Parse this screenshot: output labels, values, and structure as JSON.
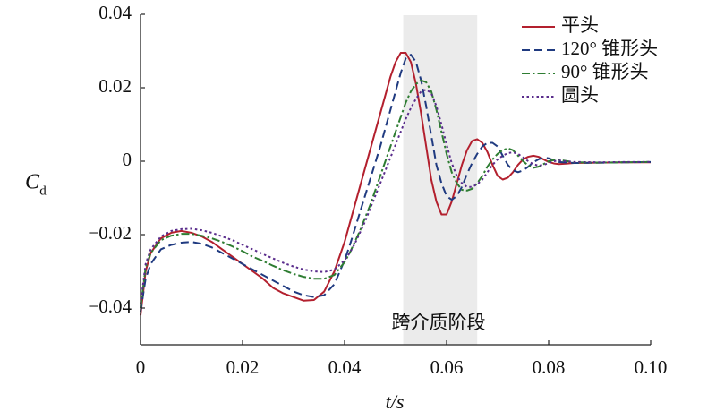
{
  "chart_data": {
    "type": "line",
    "ylabel": "C",
    "ylabel_subscript": "d",
    "xlabel": "t/s",
    "annotation": "跨介质阶段",
    "shaded_region": [
      0.0515,
      0.066
    ],
    "xlim": [
      0,
      0.1
    ],
    "ylim": [
      -0.05,
      0.04
    ],
    "xticks": [
      0,
      0.02,
      0.04,
      0.06,
      0.08,
      {
        "value": 0.1,
        "label": "0.10"
      }
    ],
    "yticks": [
      {
        "value": -0.04,
        "label": "−0.04"
      },
      {
        "value": -0.02,
        "label": "−0.02"
      },
      0,
      0.02,
      0.04
    ],
    "grid": false,
    "legend": "upper right",
    "x": [
      0,
      0.001,
      0.002,
      0.004,
      0.006,
      0.008,
      0.01,
      0.012,
      0.014,
      0.016,
      0.018,
      0.02,
      0.022,
      0.024,
      0.026,
      0.028,
      0.03,
      0.032,
      0.034,
      0.036,
      0.038,
      0.04,
      0.041,
      0.042,
      0.043,
      0.044,
      0.045,
      0.046,
      0.047,
      0.048,
      0.049,
      0.05,
      0.051,
      0.052,
      0.053,
      0.054,
      0.055,
      0.056,
      0.057,
      0.058,
      0.059,
      0.06,
      0.061,
      0.062,
      0.063,
      0.064,
      0.065,
      0.066,
      0.067,
      0.068,
      0.069,
      0.07,
      0.071,
      0.072,
      0.073,
      0.074,
      0.075,
      0.076,
      0.077,
      0.078,
      0.079,
      0.08,
      0.081,
      0.082,
      0.085,
      0.09,
      0.095,
      0.1
    ],
    "series": [
      {
        "name": "平头",
        "color": "#b3202e",
        "style": "solid",
        "values": [
          -0.042,
          -0.03,
          -0.025,
          -0.021,
          -0.0195,
          -0.019,
          -0.0195,
          -0.0205,
          -0.022,
          -0.024,
          -0.026,
          -0.028,
          -0.03,
          -0.032,
          -0.0345,
          -0.036,
          -0.037,
          -0.038,
          -0.0378,
          -0.0355,
          -0.03,
          -0.022,
          -0.017,
          -0.012,
          -0.007,
          -0.002,
          0.003,
          0.008,
          0.013,
          0.018,
          0.023,
          0.027,
          0.0295,
          0.0295,
          0.027,
          0.021,
          0.013,
          0.004,
          -0.005,
          -0.011,
          -0.0145,
          -0.0145,
          -0.011,
          -0.006,
          -0.001,
          0.003,
          0.0055,
          0.006,
          0.005,
          0.0025,
          -0.001,
          -0.004,
          -0.005,
          -0.0045,
          -0.003,
          -0.001,
          0.0005,
          0.0012,
          0.0015,
          0.0012,
          0.0005,
          -0.0002,
          -0.0006,
          -0.0008,
          -0.0005,
          -0.0004,
          -0.0003,
          -0.0003
        ]
      },
      {
        "name": "120° 锥形头",
        "color": "#1f3a80",
        "style": "dashed",
        "values": [
          -0.041,
          -0.032,
          -0.028,
          -0.024,
          -0.0228,
          -0.0222,
          -0.022,
          -0.0225,
          -0.0235,
          -0.025,
          -0.0265,
          -0.028,
          -0.0295,
          -0.031,
          -0.0325,
          -0.034,
          -0.0355,
          -0.0365,
          -0.037,
          -0.0365,
          -0.0335,
          -0.027,
          -0.023,
          -0.0185,
          -0.014,
          -0.0095,
          -0.005,
          -0.0005,
          0.004,
          0.009,
          0.014,
          0.019,
          0.024,
          0.028,
          0.029,
          0.027,
          0.022,
          0.015,
          0.007,
          -0.001,
          -0.006,
          -0.0095,
          -0.0105,
          -0.0095,
          -0.007,
          -0.0035,
          -0.0005,
          0.002,
          0.004,
          0.005,
          0.005,
          0.004,
          0.0015,
          -0.001,
          -0.0025,
          -0.003,
          -0.0025,
          -0.0015,
          -0.0003,
          0.0005,
          0.001,
          0.0008,
          0.0003,
          -0.0002,
          -0.0005,
          -0.0004,
          -0.0003,
          -0.0002
        ]
      },
      {
        "name": "90° 锥形头",
        "color": "#2e7d32",
        "style": "dashdot",
        "values": [
          -0.04,
          -0.029,
          -0.025,
          -0.0215,
          -0.0203,
          -0.0198,
          -0.0198,
          -0.0203,
          -0.021,
          -0.022,
          -0.0232,
          -0.0245,
          -0.026,
          -0.0272,
          -0.0285,
          -0.0297,
          -0.0307,
          -0.0315,
          -0.032,
          -0.032,
          -0.031,
          -0.0275,
          -0.025,
          -0.022,
          -0.019,
          -0.0155,
          -0.012,
          -0.008,
          -0.004,
          0,
          0.004,
          0.008,
          0.012,
          0.016,
          0.019,
          0.021,
          0.022,
          0.0215,
          0.019,
          0.014,
          0.008,
          0.002,
          -0.003,
          -0.006,
          -0.0078,
          -0.008,
          -0.0075,
          -0.006,
          -0.004,
          -0.0015,
          0.0005,
          0.002,
          0.003,
          0.0035,
          0.003,
          0.0015,
          0,
          -0.0012,
          -0.0018,
          -0.0015,
          -0.0008,
          0,
          0.0003,
          0.0004,
          -0.0003,
          -0.0004,
          -0.0003,
          -0.0002
        ]
      },
      {
        "name": "圆头",
        "color": "#5a2d8c",
        "style": "dotted",
        "values": [
          -0.039,
          -0.028,
          -0.024,
          -0.0205,
          -0.019,
          -0.0185,
          -0.0184,
          -0.0188,
          -0.0195,
          -0.0205,
          -0.0215,
          -0.0228,
          -0.024,
          -0.0253,
          -0.0265,
          -0.0277,
          -0.0287,
          -0.0295,
          -0.03,
          -0.0302,
          -0.0295,
          -0.027,
          -0.025,
          -0.0225,
          -0.0195,
          -0.0165,
          -0.013,
          -0.0095,
          -0.006,
          -0.0025,
          0.001,
          0.0045,
          0.008,
          0.0115,
          0.0145,
          0.017,
          0.019,
          0.0195,
          0.0185,
          0.015,
          0.01,
          0.0045,
          -0.0005,
          -0.004,
          -0.006,
          -0.007,
          -0.007,
          -0.0063,
          -0.005,
          -0.003,
          -0.001,
          0.0005,
          0.0015,
          0.0022,
          0.0024,
          0.002,
          0.001,
          0,
          -0.0008,
          -0.0012,
          -0.001,
          -0.0005,
          0,
          0.0002,
          -0.0002,
          -0.0003,
          -0.0002,
          -0.0002
        ]
      }
    ]
  }
}
